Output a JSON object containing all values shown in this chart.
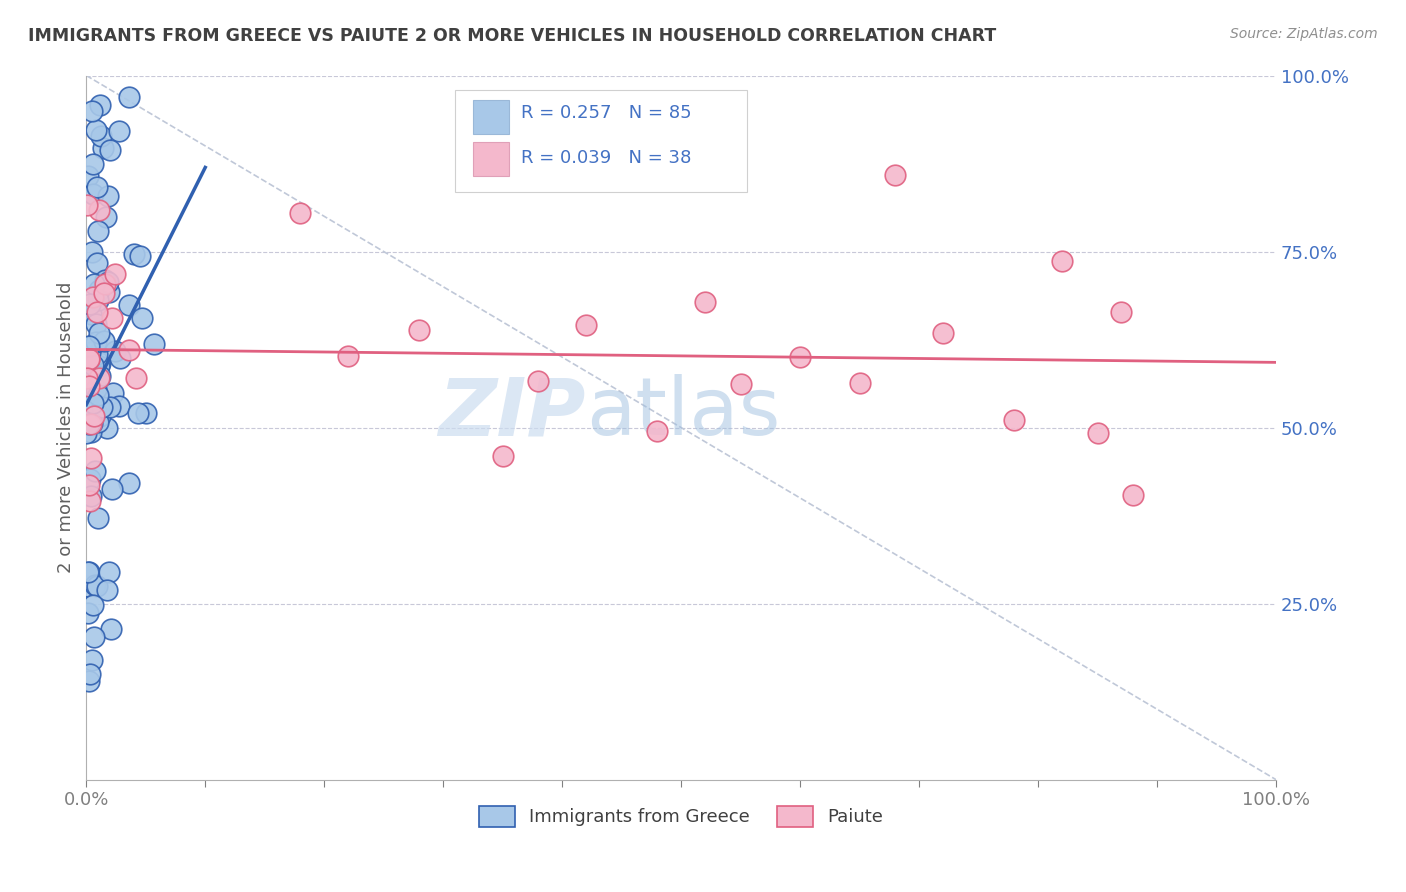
{
  "title": "IMMIGRANTS FROM GREECE VS PAIUTE 2 OR MORE VEHICLES IN HOUSEHOLD CORRELATION CHART",
  "source_text": "Source: ZipAtlas.com",
  "ylabel": "2 or more Vehicles in Household",
  "r1": 0.257,
  "n1": 85,
  "r2": 0.039,
  "n2": 38,
  "color1": "#a8c8e8",
  "color2": "#f4b8cc",
  "line_color1": "#3060b0",
  "line_color2": "#e06080",
  "legend_text_color": "#4472c4",
  "legend_label1": "Immigrants from Greece",
  "legend_label2": "Paiute",
  "watermark_zip": "ZIP",
  "watermark_atlas": "atlas",
  "xmax": 1.0,
  "ymax": 1.0,
  "grid_color": "#c8c8d8",
  "diag_color": "#c0c8d8",
  "right_tick_color": "#4472c4",
  "bottom_tick_color": "#808080"
}
